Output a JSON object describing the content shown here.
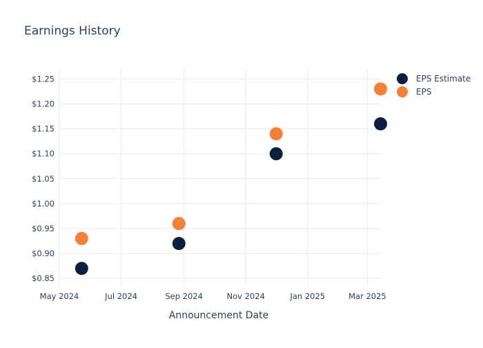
{
  "chart_data": {
    "type": "scatter",
    "title": "Earnings History",
    "xlabel": "Announcement Date",
    "ylabel": "",
    "x_ticks": [
      "May 2024",
      "Jul 2024",
      "Sep 2024",
      "Nov 2024",
      "Jan 2025",
      "Mar 2025"
    ],
    "y_ticks": [
      "$1.25",
      "$1.20",
      "$1.15",
      "$1.10",
      "$1.05",
      "$1.00",
      "$0.95",
      "$0.90",
      "$0.85"
    ],
    "xlim": [
      "2024-05-01",
      "2025-03-15"
    ],
    "ylim": [
      0.835,
      1.27
    ],
    "grid": true,
    "legend_position": "top-right",
    "series": [
      {
        "name": "EPS Estimate",
        "color": "#0b1f3f",
        "points": [
          {
            "x": "2024-05-23",
            "y": 0.87
          },
          {
            "x": "2024-08-27",
            "y": 0.92
          },
          {
            "x": "2024-12-01",
            "y": 1.1
          },
          {
            "x": "2025-03-14",
            "y": 1.16
          }
        ]
      },
      {
        "name": "EPS",
        "color": "#f47f35",
        "points": [
          {
            "x": "2024-05-23",
            "y": 0.93
          },
          {
            "x": "2024-08-27",
            "y": 0.96
          },
          {
            "x": "2024-12-01",
            "y": 1.14
          },
          {
            "x": "2025-03-14",
            "y": 1.23
          }
        ]
      }
    ]
  }
}
